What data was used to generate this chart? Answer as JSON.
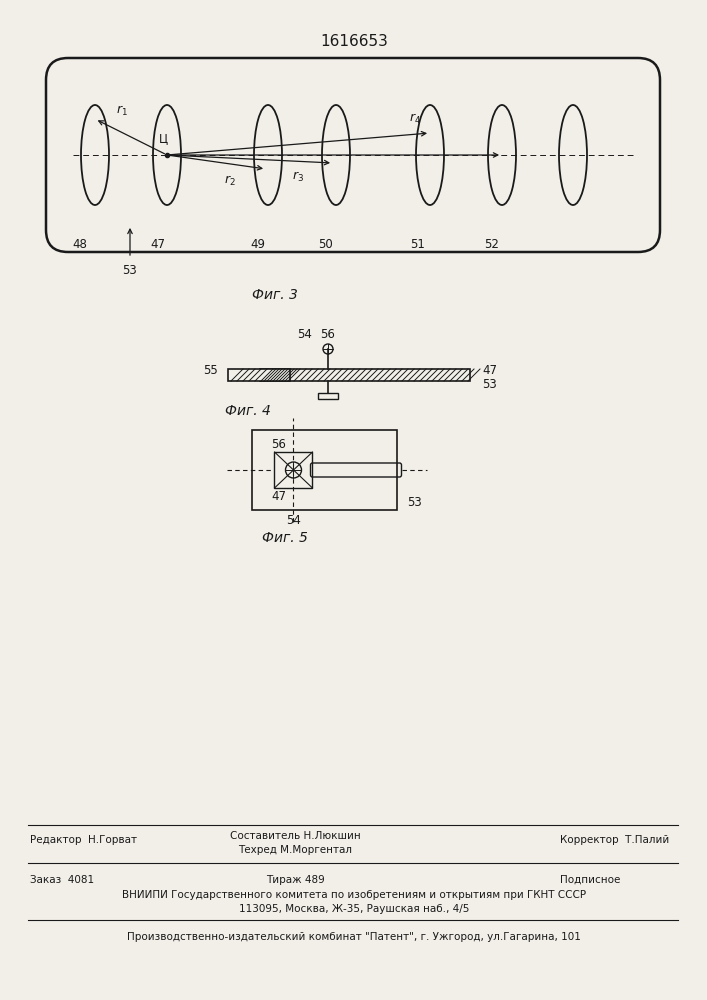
{
  "patent_number": "1616653",
  "fig3_caption": "Фиг. 3",
  "fig4_caption": "Фиг. 4",
  "fig5_caption": "Фиг. 5",
  "bg_color": "#f2efe9",
  "line_color": "#1a1a1a",
  "footer_line1_left": "Редактор  Н.Горват",
  "footer_line1_mid1": "Составитель Н.Люкшин",
  "footer_line1_mid2": "Техред М.Моргентал",
  "footer_line1_right": "Корректор  Т.Палий",
  "footer_line2_left": "Заказ  4081",
  "footer_line2_mid": "Тираж 489",
  "footer_line2_right": "Подписное",
  "footer_line3": "ВНИИПИ Государственного комитета по изобретениям и открытиям при ГКНТ СССР",
  "footer_line4": "113095, Москва, Ж-35, Раушская наб., 4/5",
  "footer_line5": "Производственно-издательский комбинат \"Патент\", г. Ужгород, ул.Гагарина, 101"
}
